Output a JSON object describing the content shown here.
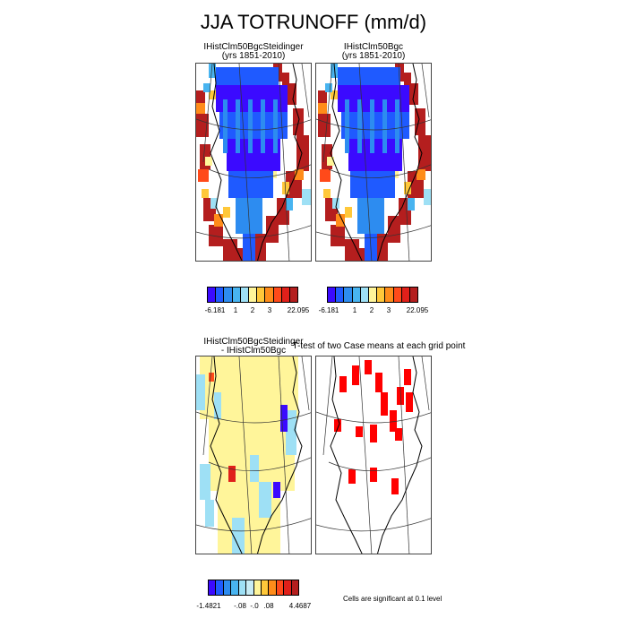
{
  "title": "JJA TOTRUNOFF (mm/d)",
  "panels": [
    {
      "title_line1": "IHistClm50BgcSteidinger",
      "title_line2": "(yrs 1851-2010)"
    },
    {
      "title_line1": "IHistClm50Bgc",
      "title_line2": "(yrs 1851-2010)"
    },
    {
      "title_line1": "IHistClm50BgcSteidinger",
      "title_line2": "- IHistClm50Bgc"
    },
    {
      "title_line1": "T-test of two Case means at each grid point",
      "title_line2": ""
    }
  ],
  "colorbar_top_left": {
    "labels": [
      "-6.181",
      "1",
      "2",
      "3",
      "22.095"
    ]
  },
  "colorbar_top_right": {
    "labels": [
      "-6.181",
      "1",
      "2",
      "3",
      "22.095"
    ]
  },
  "colorbar_bottom": {
    "labels": [
      "-1.4821",
      "-.08",
      "-.0",
      ".08",
      "4.4687"
    ]
  },
  "significance_note": "Cells are significant at 0.1 level",
  "colors": {
    "main_scale": [
      "#3b0aff",
      "#1f5aff",
      "#2d8cf0",
      "#48b4f0",
      "#9ee0f5",
      "#fff59a",
      "#ffc83a",
      "#ff8c1a",
      "#ff4a1a",
      "#e0201a",
      "#b41e1e"
    ],
    "diff_scale": [
      "#3b0aff",
      "#1f5aff",
      "#2d8cf0",
      "#48b4f0",
      "#9ee0f5",
      "#c8ecf5",
      "#fff59a",
      "#ffc83a",
      "#ff8c1a",
      "#ff4a1a",
      "#e0201a",
      "#b41e1e"
    ],
    "significant": "#ff0000"
  }
}
